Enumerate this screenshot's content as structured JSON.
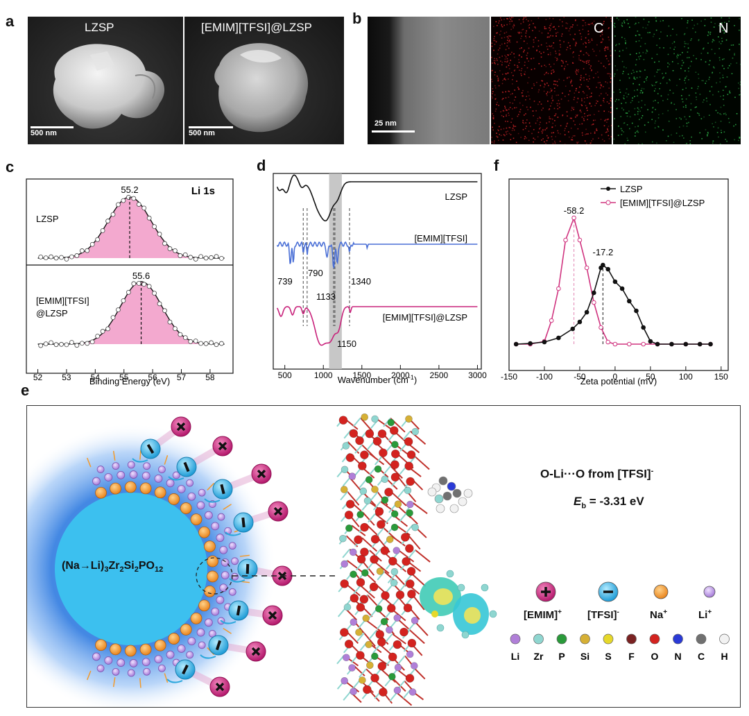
{
  "panels": {
    "a": {
      "label": "a",
      "images": [
        {
          "caption": "LZSP",
          "scale": "500 nm"
        },
        {
          "caption": "[EMIM][TFSI]@LZSP",
          "scale": "500 nm"
        }
      ]
    },
    "b": {
      "label": "b",
      "scale": "25 nm",
      "maps": [
        {
          "caption": "C",
          "color": "#d8262a"
        },
        {
          "caption": "N",
          "color": "#2fb84a"
        }
      ]
    },
    "c": {
      "label": "c",
      "title": "Li 1s",
      "xlabel": "Binding Energy (eV)",
      "xticks": [
        "52",
        "53",
        "54",
        "55",
        "56",
        "57",
        "58"
      ],
      "fill_color": "#f3a9cf",
      "upper": {
        "name": "LZSP",
        "peak": "55.2",
        "peak_value": 55.2
      },
      "lower": {
        "name_line1": "[EMIM][TFSI]",
        "name_line2": "@LZSP",
        "peak": "55.6",
        "peak_value": 55.6
      }
    },
    "d": {
      "label": "d",
      "xlabel": "Wavenumber (cm",
      "xlabel_sup": "-1",
      "xlabel_end": ")",
      "xticks": [
        "500",
        "1000",
        "1500",
        "2000",
        "2500",
        "3000"
      ],
      "series": [
        {
          "name": "LZSP",
          "color": "#111111"
        },
        {
          "name": "[EMIM][TFSI]",
          "color": "#4a6fd6"
        },
        {
          "name": "[EMIM][TFSI]@LZSP",
          "color": "#c8207a"
        }
      ],
      "annotations": [
        "739",
        "790",
        "1133",
        "1340",
        "1150"
      ]
    },
    "f": {
      "label": "f",
      "xlabel": "Zeta potential (mV)",
      "xticks": [
        "-150",
        "-100",
        "-50",
        "0",
        "50",
        "100",
        "150"
      ],
      "series": [
        {
          "name": "LZSP",
          "color": "#111111",
          "peak": "-17.2"
        },
        {
          "name": "[EMIM][TFSI]@LZSP",
          "color": "#d0337f",
          "peak": "-58.2"
        }
      ]
    },
    "e": {
      "label": "e",
      "particle_formula": {
        "a": "(Na→Li)",
        "s1": "3",
        "b": "Zr",
        "s2": "2",
        "c": "Si",
        "s3": "2",
        "d": "PO",
        "s4": "12"
      },
      "binding_title": {
        "text": "O-Li···O from [TFSI]",
        "sup": "-"
      },
      "binding_energy": {
        "sym": "E",
        "sub": "b",
        "value": " = -3.31 eV"
      },
      "legend_ions": [
        {
          "label": "[EMIM]",
          "sup": "+",
          "color": "#d6358a"
        },
        {
          "label": "[TFSI]",
          "sup": "-",
          "color": "#3fb9e6"
        },
        {
          "label": "Na",
          "sup": "+",
          "color": "#f39a2a"
        },
        {
          "label": "Li",
          "sup": "+",
          "color": "#c49be6"
        }
      ],
      "legend_atoms": [
        {
          "label": "Li",
          "color": "#b07fd8"
        },
        {
          "label": "Zr",
          "color": "#8fd6d0"
        },
        {
          "label": "P",
          "color": "#2a9a3a"
        },
        {
          "label": "Si",
          "color": "#d6b035"
        },
        {
          "label": "S",
          "color": "#e6d82a"
        },
        {
          "label": "F",
          "color": "#7a2222"
        },
        {
          "label": "O",
          "color": "#d3231f"
        },
        {
          "label": "N",
          "color": "#2a3ad6"
        },
        {
          "label": "C",
          "color": "#707070"
        },
        {
          "label": "H",
          "color": "#f2f2f2"
        }
      ]
    }
  }
}
